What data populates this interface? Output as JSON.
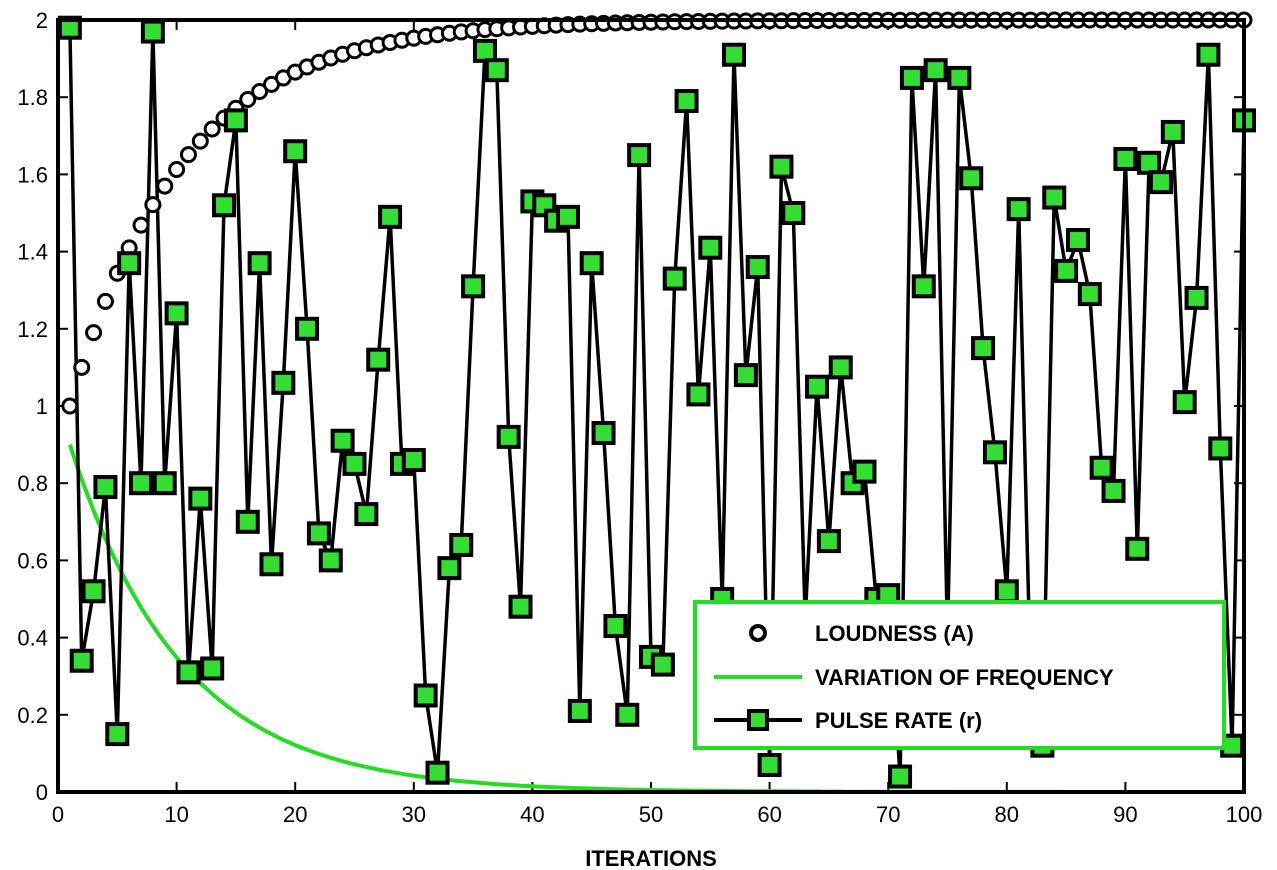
{
  "chart_data": {
    "type": "line",
    "xlabel": "ITERATIONS",
    "ylabel": "",
    "title": "",
    "xlim": [
      0,
      100
    ],
    "ylim": [
      0,
      2
    ],
    "x_ticks": [
      "0",
      "10",
      "20",
      "30",
      "40",
      "50",
      "60",
      "70",
      "80",
      "90",
      "100"
    ],
    "y_ticks": [
      "0",
      "0.2",
      "0.4",
      "0.6",
      "0.8",
      "1",
      "1.2",
      "1.4",
      "1.6",
      "1.8",
      "2"
    ],
    "grid": false,
    "legend_position": "bottom-right",
    "legend_border_color": "#22dd22",
    "series": [
      {
        "name": "LOUDNESS (A)",
        "style": "circle-markers",
        "color": "#000000",
        "model": "A(t) = 2 - 1.0 * 0.9^(t-1)",
        "x_start": 1,
        "x_end": 100
      },
      {
        "name": "VARIATION OF FREQUENCY",
        "style": "line",
        "color": "#22dd22",
        "model": "f(t) = 0.9 * 0.9^(t-1)",
        "x_start": 1,
        "x_end": 100
      },
      {
        "name": "PULSE RATE (r)",
        "style": "line-square-markers",
        "color": "#000000",
        "marker_fill": "#33dd33",
        "x_start": 1,
        "values": [
          1.98,
          0.34,
          0.52,
          0.79,
          0.15,
          1.37,
          0.8,
          1.97,
          0.8,
          1.24,
          0.31,
          0.76,
          0.32,
          1.52,
          1.74,
          0.7,
          1.37,
          0.59,
          1.06,
          1.66,
          1.2,
          0.67,
          0.6,
          0.91,
          0.85,
          0.72,
          1.12,
          1.49,
          0.85,
          0.86,
          0.25,
          0.05,
          0.58,
          0.64,
          1.31,
          1.92,
          1.87,
          0.92,
          0.48,
          1.53,
          1.52,
          1.48,
          1.49,
          0.21,
          1.37,
          0.93,
          0.43,
          0.2,
          1.65,
          0.35,
          0.33,
          1.33,
          1.79,
          1.03,
          1.41,
          0.5,
          1.91,
          1.08,
          1.36,
          0.07,
          1.62,
          1.5,
          0.45,
          1.05,
          0.65,
          1.1,
          0.8,
          0.83,
          0.5,
          0.51,
          0.04,
          1.85,
          1.31,
          1.87,
          0.4,
          1.85,
          1.59,
          1.15,
          0.88,
          0.52,
          1.51,
          0.3,
          0.12,
          1.54,
          1.35,
          1.43,
          1.29,
          0.84,
          0.78,
          1.64,
          0.63,
          1.63,
          1.58,
          1.71,
          1.01,
          1.28,
          1.91,
          0.89,
          0.12,
          1.74
        ]
      }
    ]
  }
}
